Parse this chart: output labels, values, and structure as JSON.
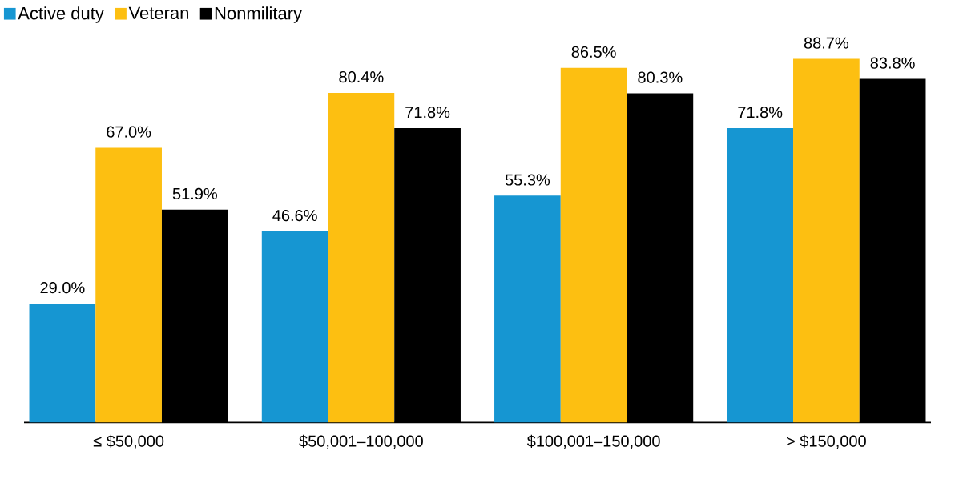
{
  "chart_data": {
    "type": "bar",
    "categories": [
      "≤ $50,000",
      "$50,001–100,000",
      "$100,001–150,000",
      "> $150,000"
    ],
    "series": [
      {
        "name": "Active duty",
        "color": "#1696d2",
        "values": [
          29.0,
          46.6,
          55.3,
          71.8
        ],
        "value_labels": [
          "29.0%",
          "46.6%",
          "55.3%",
          "71.8%"
        ]
      },
      {
        "name": "Veteran",
        "color": "#fdbf11",
        "values": [
          67.0,
          80.4,
          86.5,
          88.7
        ],
        "value_labels": [
          "67.0%",
          "80.4%",
          "86.5%",
          "88.7%"
        ]
      },
      {
        "name": "Nonmilitary",
        "color": "#000000",
        "values": [
          51.9,
          71.8,
          80.3,
          83.8
        ],
        "value_labels": [
          "51.9%",
          "71.8%",
          "80.3%",
          "83.8%"
        ]
      }
    ],
    "legend": "top left"
  }
}
